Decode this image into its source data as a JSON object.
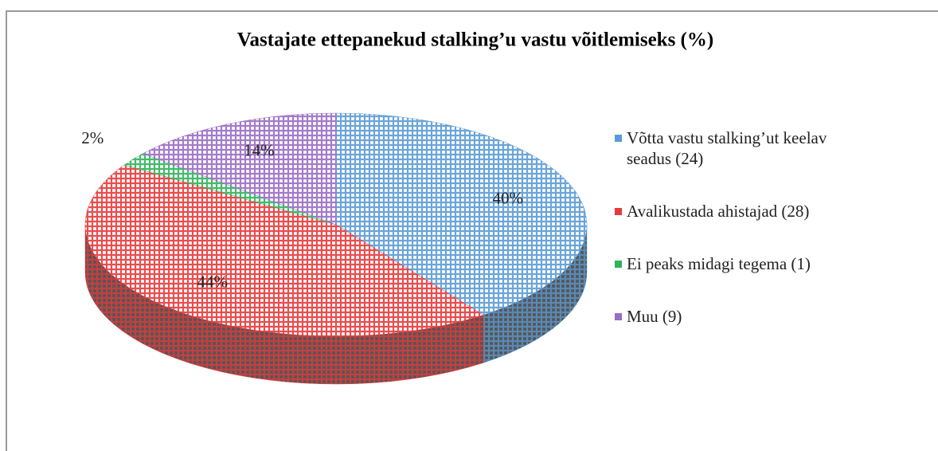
{
  "chart_data": {
    "type": "pie",
    "title": "Vastajate ettepanekud stalking’u vastu võitlemiseks (%)",
    "categories": [
      "Võtta vastu stalking’ut keelav seadus (24)",
      "Avalikustada ahistajad (28)",
      "Ei peaks midagi tegema (1)",
      "Muu (9)"
    ],
    "values": [
      40,
      44,
      2,
      14
    ],
    "value_labels": [
      "40%",
      "44%",
      "2%",
      "14%"
    ],
    "colors": [
      "#5b9bd5",
      "#e8393a",
      "#2fb35a",
      "#9a6cc4"
    ],
    "legend": "right"
  }
}
